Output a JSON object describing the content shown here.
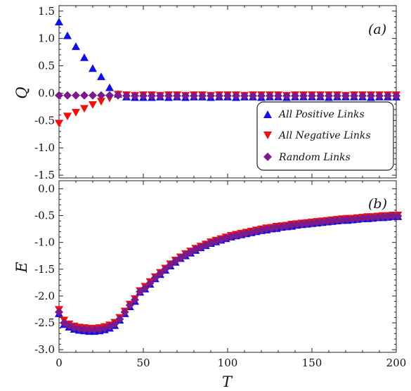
{
  "chart_data": [
    {
      "type": "scatter",
      "panel_label": "(a)",
      "ylabel": "Q",
      "xlabel": "",
      "xlim": [
        0,
        200
      ],
      "ylim": [
        -1.55,
        1.6
      ],
      "xticks": [
        0,
        50,
        100,
        150,
        200
      ],
      "yticks": [
        -1.5,
        -1.0,
        -0.5,
        0.0,
        0.5,
        1.0,
        1.5
      ],
      "ytick_labels": [
        "-1.5",
        "-1.0",
        "-0.5",
        "0.0",
        "0.5",
        "1.0",
        "1.5"
      ],
      "legend_position": "lower-right",
      "series": [
        {
          "name": "All Positive Links",
          "marker": "triangle-up",
          "color": "#1010e0",
          "x": [
            0,
            5,
            10,
            15,
            20,
            25,
            30,
            35,
            40,
            45,
            50,
            55,
            60,
            65,
            70,
            75,
            80,
            85,
            90,
            95,
            100,
            105,
            110,
            115,
            120,
            125,
            130,
            135,
            140,
            145,
            150,
            155,
            160,
            165,
            170,
            175,
            180,
            185,
            190,
            195,
            200
          ],
          "y": [
            1.3,
            1.05,
            0.85,
            0.65,
            0.45,
            0.3,
            0.1,
            -0.02,
            -0.07,
            -0.08,
            -0.08,
            -0.08,
            -0.07,
            -0.08,
            -0.07,
            -0.08,
            -0.07,
            -0.07,
            -0.08,
            -0.07,
            -0.07,
            -0.08,
            -0.07,
            -0.07,
            -0.08,
            -0.07,
            -0.07,
            -0.08,
            -0.07,
            -0.07,
            -0.07,
            -0.07,
            -0.08,
            -0.07,
            -0.07,
            -0.07,
            -0.07,
            -0.08,
            -0.07,
            -0.07,
            -0.07
          ]
        },
        {
          "name": "All Negative Links",
          "marker": "triangle-down",
          "color": "#ee1111",
          "x": [
            0,
            5,
            10,
            15,
            20,
            25,
            30,
            35,
            40,
            45,
            50,
            55,
            60,
            65,
            70,
            75,
            80,
            85,
            90,
            95,
            100,
            105,
            110,
            115,
            120,
            125,
            130,
            135,
            140,
            145,
            150,
            155,
            160,
            165,
            170,
            175,
            180,
            185,
            190,
            195,
            200
          ],
          "y": [
            -0.55,
            -0.42,
            -0.35,
            -0.28,
            -0.21,
            -0.15,
            -0.09,
            -0.02,
            -0.03,
            -0.04,
            -0.03,
            -0.03,
            -0.04,
            -0.03,
            -0.03,
            -0.04,
            -0.03,
            -0.03,
            -0.04,
            -0.03,
            -0.03,
            -0.03,
            -0.04,
            -0.03,
            -0.03,
            -0.03,
            -0.03,
            -0.04,
            -0.03,
            -0.03,
            -0.03,
            -0.03,
            -0.03,
            -0.03,
            -0.04,
            -0.03,
            -0.03,
            -0.03,
            -0.03,
            -0.03,
            -0.03
          ]
        },
        {
          "name": "Random Links",
          "marker": "diamond",
          "color": "#7a1a8c",
          "x": [
            0,
            5,
            10,
            15,
            20,
            25,
            30,
            35,
            40,
            45,
            50,
            55,
            60,
            65,
            70,
            75,
            80,
            85,
            90,
            95,
            100,
            105,
            110,
            115,
            120,
            125,
            130,
            135,
            140,
            145,
            150,
            155,
            160,
            165,
            170,
            175,
            180,
            185,
            190,
            195,
            200
          ],
          "y": [
            -0.04,
            -0.04,
            -0.04,
            -0.04,
            -0.04,
            -0.04,
            -0.04,
            -0.04,
            -0.05,
            -0.05,
            -0.05,
            -0.05,
            -0.05,
            -0.05,
            -0.05,
            -0.05,
            -0.05,
            -0.05,
            -0.05,
            -0.05,
            -0.05,
            -0.05,
            -0.05,
            -0.05,
            -0.05,
            -0.05,
            -0.05,
            -0.05,
            -0.05,
            -0.05,
            -0.05,
            -0.05,
            -0.05,
            -0.05,
            -0.05,
            -0.05,
            -0.05,
            -0.05,
            -0.05,
            -0.05,
            -0.05
          ]
        }
      ]
    },
    {
      "type": "scatter",
      "panel_label": "(b)",
      "ylabel": "E",
      "xlabel": "T",
      "xlim": [
        0,
        200
      ],
      "ylim": [
        -3.05,
        0.15
      ],
      "xticks": [
        0,
        50,
        100,
        150,
        200
      ],
      "xtick_labels": [
        "0",
        "50",
        "100",
        "150",
        "200"
      ],
      "yticks": [
        -3.0,
        -2.5,
        -2.0,
        -1.5,
        -1.0,
        -0.5,
        0.0
      ],
      "ytick_labels": [
        "-3.0",
        "-2.5",
        "-2.0",
        "-1.5",
        "-1.0",
        "-0.5",
        "0.0"
      ],
      "series": [
        {
          "name": "All Positive Links",
          "marker": "triangle-up",
          "color": "#1010e0",
          "x": [
            0,
            3,
            6,
            9,
            12,
            15,
            18,
            21,
            24,
            27,
            30,
            33,
            36,
            39,
            42,
            45,
            48,
            51,
            54,
            57,
            60,
            63,
            66,
            69,
            72,
            75,
            78,
            81,
            84,
            87,
            90,
            93,
            96,
            99,
            102,
            105,
            108,
            111,
            114,
            117,
            120,
            123,
            126,
            129,
            132,
            135,
            138,
            141,
            144,
            147,
            150,
            153,
            156,
            159,
            162,
            165,
            168,
            171,
            174,
            177,
            180,
            183,
            186,
            189,
            192,
            195,
            198,
            201
          ],
          "y": [
            -2.33,
            -2.53,
            -2.58,
            -2.62,
            -2.64,
            -2.65,
            -2.66,
            -2.66,
            -2.65,
            -2.63,
            -2.6,
            -2.55,
            -2.45,
            -2.33,
            -2.2,
            -2.1,
            -1.93,
            -1.87,
            -1.78,
            -1.68,
            -1.6,
            -1.52,
            -1.44,
            -1.37,
            -1.3,
            -1.25,
            -1.2,
            -1.15,
            -1.1,
            -1.06,
            -1.02,
            -0.99,
            -0.96,
            -0.93,
            -0.9,
            -0.88,
            -0.86,
            -0.84,
            -0.82,
            -0.8,
            -0.78,
            -0.77,
            -0.75,
            -0.74,
            -0.72,
            -0.71,
            -0.7,
            -0.68,
            -0.67,
            -0.66,
            -0.65,
            -0.64,
            -0.63,
            -0.62,
            -0.61,
            -0.6,
            -0.59,
            -0.59,
            -0.58,
            -0.57,
            -0.56,
            -0.56,
            -0.55,
            -0.54,
            -0.54,
            -0.53,
            -0.52,
            -0.52
          ]
        },
        {
          "name": "All Negative Links",
          "marker": "triangle-down",
          "color": "#ee1111",
          "x": [
            0,
            3,
            6,
            9,
            12,
            15,
            18,
            21,
            24,
            27,
            30,
            33,
            36,
            39,
            42,
            45,
            48,
            51,
            54,
            57,
            60,
            63,
            66,
            69,
            72,
            75,
            78,
            81,
            84,
            87,
            90,
            93,
            96,
            99,
            102,
            105,
            108,
            111,
            114,
            117,
            120,
            123,
            126,
            129,
            132,
            135,
            138,
            141,
            144,
            147,
            150,
            153,
            156,
            159,
            162,
            165,
            168,
            171,
            174,
            177,
            180,
            183,
            186,
            189,
            192,
            195,
            198,
            201
          ],
          "y": [
            -2.25,
            -2.45,
            -2.52,
            -2.56,
            -2.58,
            -2.59,
            -2.6,
            -2.6,
            -2.59,
            -2.57,
            -2.54,
            -2.49,
            -2.4,
            -2.28,
            -2.15,
            -2.05,
            -1.9,
            -1.82,
            -1.73,
            -1.64,
            -1.56,
            -1.48,
            -1.4,
            -1.33,
            -1.27,
            -1.21,
            -1.16,
            -1.11,
            -1.07,
            -1.03,
            -0.99,
            -0.96,
            -0.93,
            -0.9,
            -0.87,
            -0.85,
            -0.83,
            -0.81,
            -0.79,
            -0.77,
            -0.75,
            -0.73,
            -0.72,
            -0.7,
            -0.69,
            -0.68,
            -0.66,
            -0.65,
            -0.64,
            -0.63,
            -0.62,
            -0.61,
            -0.6,
            -0.59,
            -0.58,
            -0.57,
            -0.56,
            -0.55,
            -0.55,
            -0.54,
            -0.53,
            -0.52,
            -0.52,
            -0.51,
            -0.5,
            -0.5,
            -0.49,
            -0.49
          ]
        },
        {
          "name": "Random Links",
          "marker": "diamond",
          "color": "#7a1a8c",
          "x": [
            0,
            3,
            6,
            9,
            12,
            15,
            18,
            21,
            24,
            27,
            30,
            33,
            36,
            39,
            42,
            45,
            48,
            51,
            54,
            57,
            60,
            63,
            66,
            69,
            72,
            75,
            78,
            81,
            84,
            87,
            90,
            93,
            96,
            99,
            102,
            105,
            108,
            111,
            114,
            117,
            120,
            123,
            126,
            129,
            132,
            135,
            138,
            141,
            144,
            147,
            150,
            153,
            156,
            159,
            162,
            165,
            168,
            171,
            174,
            177,
            180,
            183,
            186,
            189,
            192,
            195,
            198,
            201
          ],
          "y": [
            -2.3,
            -2.5,
            -2.55,
            -2.59,
            -2.61,
            -2.62,
            -2.63,
            -2.63,
            -2.62,
            -2.6,
            -2.57,
            -2.52,
            -2.43,
            -2.3,
            -2.17,
            -2.07,
            -1.92,
            -1.85,
            -1.76,
            -1.66,
            -1.58,
            -1.5,
            -1.42,
            -1.35,
            -1.29,
            -1.23,
            -1.18,
            -1.13,
            -1.09,
            -1.05,
            -1.01,
            -0.98,
            -0.95,
            -0.92,
            -0.89,
            -0.87,
            -0.85,
            -0.83,
            -0.81,
            -0.79,
            -0.77,
            -0.75,
            -0.74,
            -0.72,
            -0.71,
            -0.7,
            -0.68,
            -0.67,
            -0.66,
            -0.65,
            -0.64,
            -0.63,
            -0.62,
            -0.61,
            -0.6,
            -0.59,
            -0.58,
            -0.57,
            -0.57,
            -0.56,
            -0.55,
            -0.54,
            -0.54,
            -0.53,
            -0.52,
            -0.52,
            -0.51,
            -0.51
          ]
        }
      ]
    }
  ]
}
